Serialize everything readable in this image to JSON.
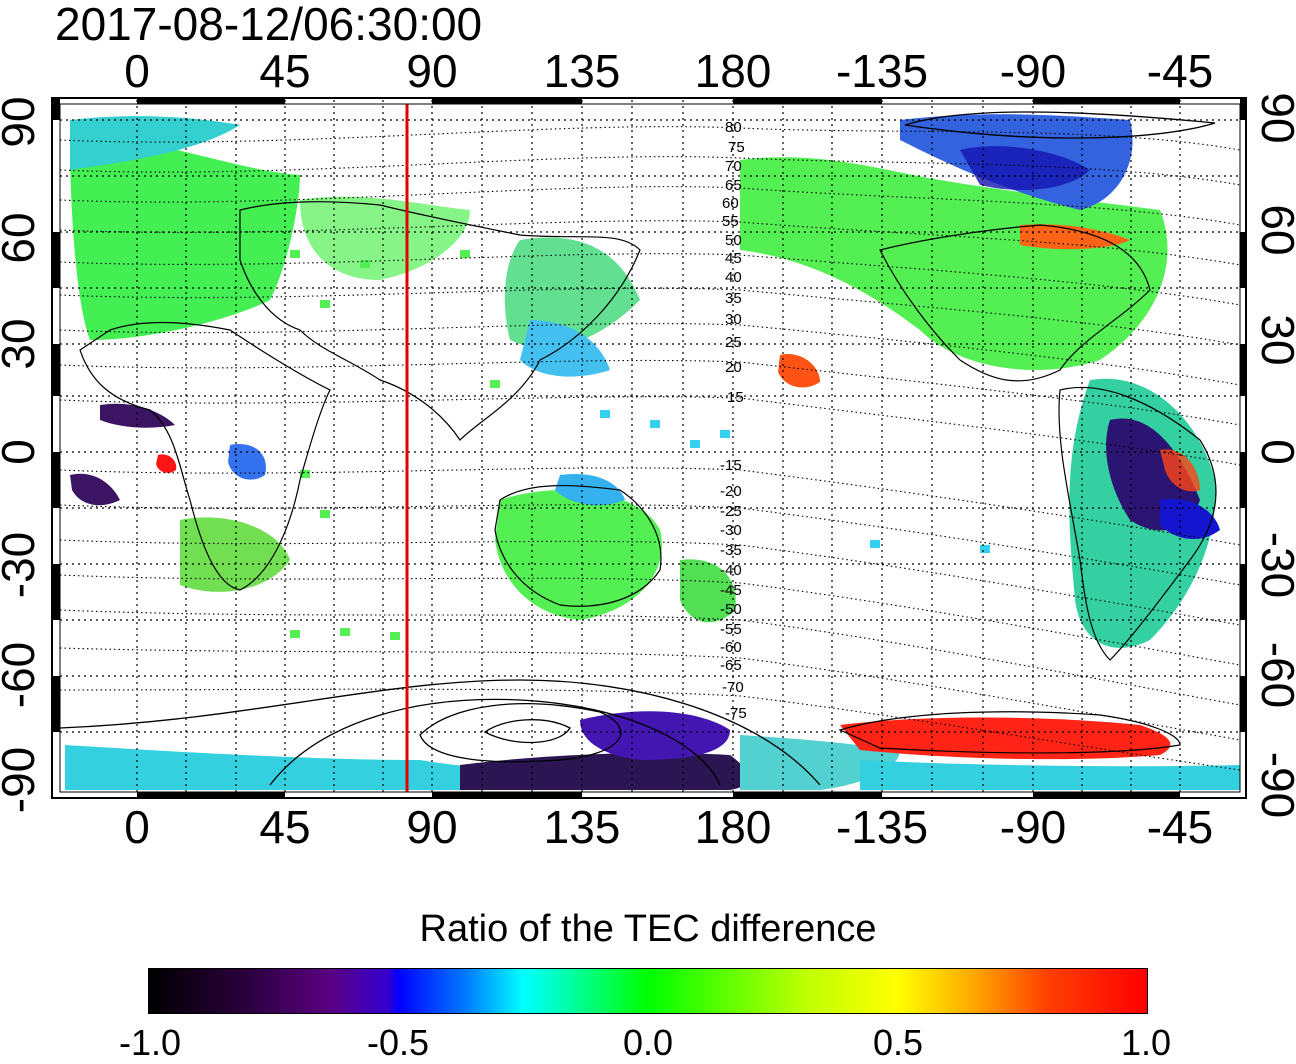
{
  "title": "2017-08-12/06:30:00",
  "lon_ticks": [
    "0",
    "45",
    "90",
    "135",
    "180",
    "-135",
    "-90",
    "-45"
  ],
  "lat_ticks": [
    "90",
    "60",
    "30",
    "0",
    "-30",
    "-60",
    "-90"
  ],
  "contour_labels": [
    "80",
    "75",
    "70",
    "65",
    "60",
    "55",
    "50",
    "45",
    "40",
    "35",
    "30",
    "25",
    "20",
    "15",
    "-15",
    "-20",
    "-25",
    "-30",
    "-35",
    "-40",
    "-45",
    "-50",
    "-55",
    "-60",
    "-65",
    "-70",
    "-75"
  ],
  "colorbar": {
    "title": "Ratio of the TEC difference",
    "ticks": [
      "-1.0",
      "-0.5",
      "0.0",
      "0.5",
      "1.0"
    ],
    "range": [
      -1.0,
      1.0
    ]
  },
  "colors": {
    "terminator_line": "#e00000",
    "red": "#ff0000",
    "green": "#33ee33",
    "blue": "#0000ff",
    "dark": "#1a0033"
  },
  "map": {
    "lon_range": [
      -22,
      340
    ],
    "lat_range": [
      -90,
      90
    ],
    "terminator_longitude": 84,
    "grid": "dotted"
  }
}
